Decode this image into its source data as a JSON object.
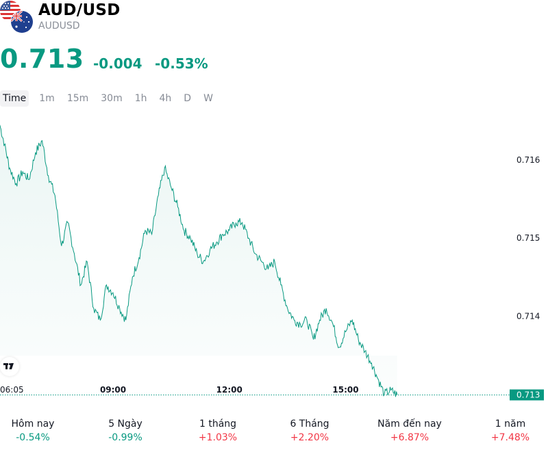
{
  "header": {
    "symbol": "AUD/USD",
    "subsymbol": "AUDUSD",
    "price": "0.713",
    "change": "-0.004",
    "change_pct": "-0.53%",
    "flag_icons": [
      "us-flag-icon",
      "australia-flag-icon"
    ]
  },
  "timeframes": [
    "Time",
    "1m",
    "15m",
    "30m",
    "1h",
    "4h",
    "D",
    "W"
  ],
  "active_timeframe": "Time",
  "chart_data": {
    "type": "area",
    "title": "",
    "xlabel": "",
    "ylabel": "",
    "x_tick_labels": [
      "06:05",
      "09:00",
      "12:00",
      "15:00"
    ],
    "y_tick_labels": [
      "0.716",
      "0.715",
      "0.714",
      "0.713"
    ],
    "ylim": [
      0.71288,
      0.71665
    ],
    "x_range_hours": [
      6.083,
      19.25
    ],
    "last_price_label": "0.713",
    "last_price_value": 0.71299,
    "series": [
      {
        "x": [
          6.08,
          6.2,
          6.33,
          6.5,
          6.67,
          6.83,
          7.0,
          7.17,
          7.33,
          7.5,
          7.67,
          7.83,
          8.0,
          8.17,
          8.33,
          8.5,
          8.67,
          8.83,
          9.0,
          9.17,
          9.33,
          9.5,
          9.67,
          9.83,
          10.0,
          10.17,
          10.33,
          10.5,
          10.67,
          10.83,
          11.0,
          11.17,
          11.33,
          11.5,
          11.67,
          11.83,
          12.0,
          12.17,
          12.33,
          12.5,
          12.67,
          12.83,
          13.0,
          13.17,
          13.33,
          13.5,
          13.67,
          13.83,
          14.0,
          14.17,
          14.33,
          14.5,
          14.67,
          14.83,
          15.0,
          15.17,
          15.33,
          15.5,
          15.67,
          15.83,
          16.0,
          16.17,
          16.33
        ],
        "values": [
          0.71645,
          0.7162,
          0.7159,
          0.7157,
          0.71585,
          0.71575,
          0.7161,
          0.71625,
          0.7158,
          0.71555,
          0.7149,
          0.7152,
          0.7148,
          0.7144,
          0.7147,
          0.7141,
          0.71395,
          0.7144,
          0.7143,
          0.7141,
          0.71395,
          0.7145,
          0.71475,
          0.7151,
          0.71505,
          0.71555,
          0.7159,
          0.71565,
          0.7154,
          0.7151,
          0.715,
          0.7148,
          0.7147,
          0.71485,
          0.71495,
          0.71505,
          0.7151,
          0.7152,
          0.7152,
          0.715,
          0.7148,
          0.7147,
          0.7146,
          0.7147,
          0.7144,
          0.7141,
          0.71395,
          0.7139,
          0.71395,
          0.7137,
          0.71395,
          0.7141,
          0.7139,
          0.7136,
          0.7138,
          0.71395,
          0.7137,
          0.71355,
          0.7134,
          0.7132,
          0.713,
          0.71305,
          0.71299
        ]
      }
    ],
    "grid": false
  },
  "performance": [
    {
      "label": "Hôm nay",
      "value": "-0.54%",
      "dir": "down"
    },
    {
      "label": "5 Ngày",
      "value": "-0.99%",
      "dir": "down"
    },
    {
      "label": "1 tháng",
      "value": "+1.03%",
      "dir": "up"
    },
    {
      "label": "6 Tháng",
      "value": "+2.20%",
      "dir": "up"
    },
    {
      "label": "Năm đến nay",
      "value": "+6.87%",
      "dir": "up"
    },
    {
      "label": "1 năm",
      "value": "+7.48%",
      "dir": "up"
    }
  ],
  "colors": {
    "accent_green": "#089981",
    "accent_red": "#f23645",
    "area_fill": "#e9f5f3"
  }
}
